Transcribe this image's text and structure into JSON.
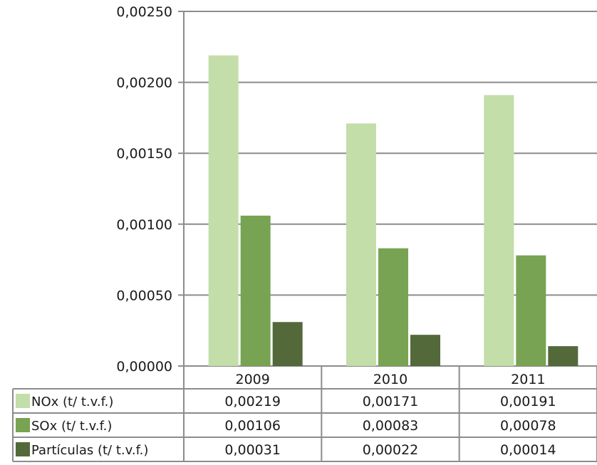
{
  "chart_data": {
    "type": "bar",
    "categories": [
      "2009",
      "2010",
      "2011"
    ],
    "series": [
      {
        "name": "NOx (t/ t.v.f.)",
        "values": [
          0.00219,
          0.00171,
          0.00191
        ],
        "display": [
          "0,00219",
          "0,00171",
          "0,00191"
        ],
        "color": "#c3dea8"
      },
      {
        "name": "SOx (t/ t.v.f.)",
        "values": [
          0.00106,
          0.00083,
          0.00078
        ],
        "display": [
          "0,00106",
          "0,00083",
          "0,00078"
        ],
        "color": "#77a352"
      },
      {
        "name": "Partículas (t/ t.v.f.)",
        "values": [
          0.00031,
          0.00022,
          0.00014
        ],
        "display": [
          "0,00031",
          "0,00022",
          "0,00014"
        ],
        "color": "#53693a"
      }
    ],
    "ylim": [
      0,
      0.0025
    ],
    "yticks": [
      0,
      0.0005,
      0.001,
      0.0015,
      0.002,
      0.0025
    ],
    "ytick_labels": [
      "0,00000",
      "0,00050",
      "0,00100",
      "0,00150",
      "0,00200",
      "0,00250"
    ],
    "grid": true,
    "legend": "data-table"
  }
}
